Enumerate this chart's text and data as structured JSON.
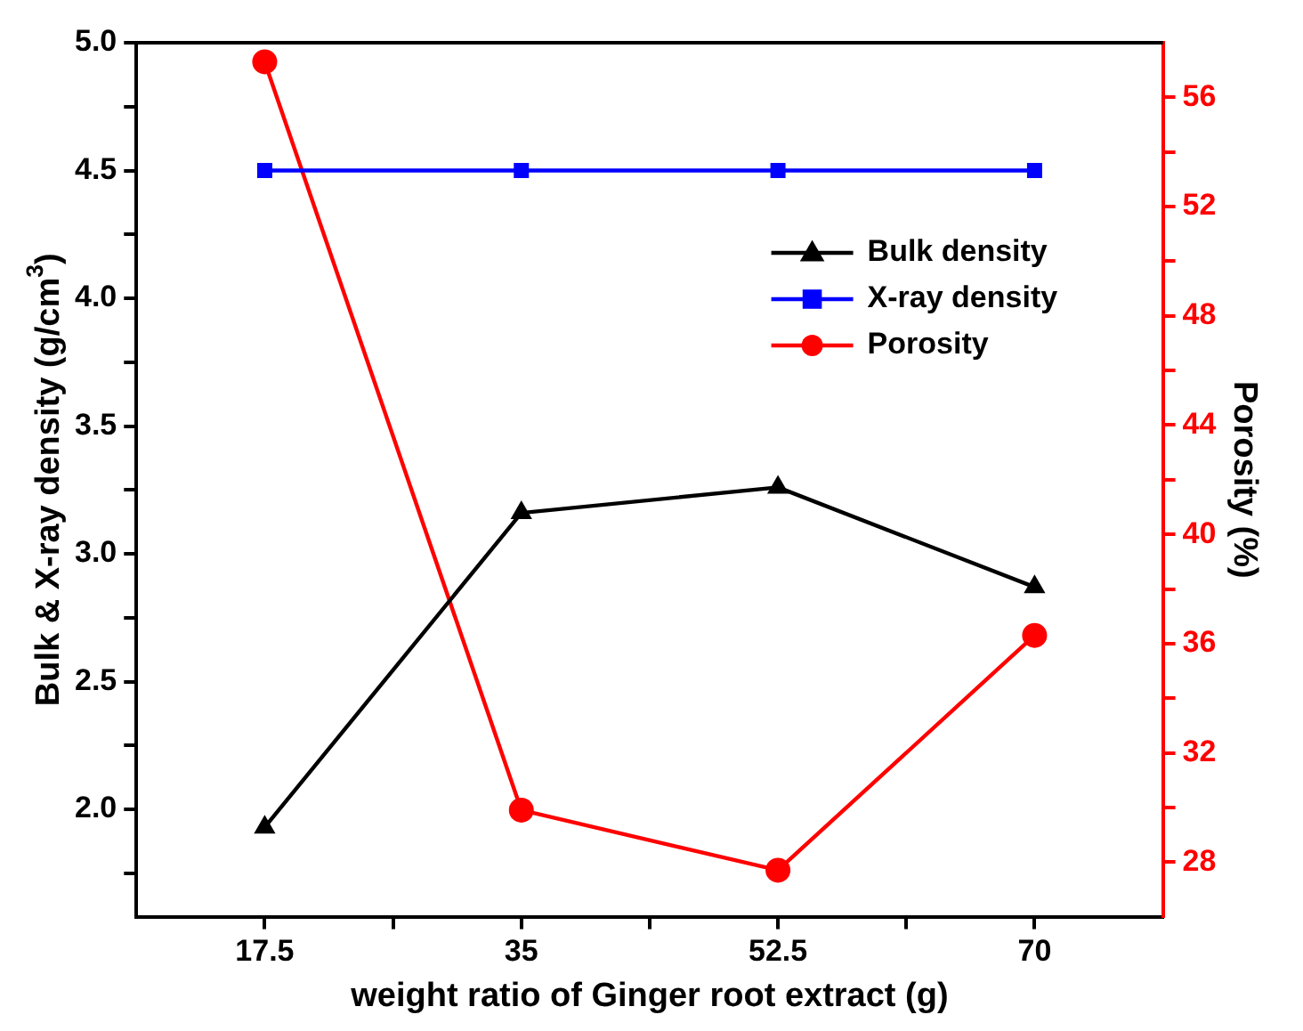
{
  "chart_data": {
    "type": "line",
    "xlabel": "weight ratio of Ginger root extract (g)",
    "ylabel": "Bulk & X-ray density (g/cm$^{3}$)",
    "y2label": "Porosity (%)",
    "x": [
      17.5,
      35,
      52.5,
      70
    ],
    "xlim": [
      8.75,
      78.75
    ],
    "xticks": [
      17.5,
      {
        "value": 26.25,
        "label": null
      },
      35,
      {
        "value": 43.75,
        "label": null
      },
      52.5,
      {
        "value": 61.25,
        "label": null
      },
      70
    ],
    "ylim": [
      1.58,
      5.0
    ],
    "yticks": [
      {
        "value": 1.75,
        "label": null
      },
      {
        "value": 2,
        "label": "2.0"
      },
      {
        "value": 2.25,
        "label": null
      },
      2.5,
      {
        "value": 2.75,
        "label": null
      },
      {
        "value": 3,
        "label": "3.0"
      },
      {
        "value": 3.25,
        "label": null
      },
      3.5,
      {
        "value": 3.75,
        "label": null
      },
      {
        "value": 4,
        "label": "4.0"
      },
      {
        "value": 4.25,
        "label": null
      },
      4.5,
      {
        "value": 4.75,
        "label": null
      },
      {
        "value": 5,
        "label": "5.0"
      }
    ],
    "y2lim": [
      26,
      58
    ],
    "y2ticks": [
      28,
      {
        "value": 30,
        "label": null
      },
      32,
      {
        "value": 34,
        "label": null
      },
      36,
      {
        "value": 38,
        "label": null
      },
      40,
      {
        "value": 42,
        "label": null
      },
      44,
      {
        "value": 46,
        "label": null
      },
      48,
      {
        "value": 50,
        "label": null
      },
      52,
      {
        "value": 54,
        "label": null
      },
      56
    ],
    "series": [
      {
        "name": "Bulk density",
        "color": "#000000",
        "marker": "triangle",
        "values": [
          1.93,
          3.16,
          3.26,
          2.87
        ]
      },
      {
        "name": "X-ray density",
        "color": "#0000ff",
        "marker": "square",
        "values": [
          4.5,
          4.5,
          4.5,
          4.5
        ]
      },
      {
        "name": "Porosity",
        "color": "#ff0000",
        "marker": "circle",
        "axis": "y2",
        "values": [
          57.3,
          29.9,
          27.7,
          36.3
        ]
      }
    ],
    "legend": "top right",
    "grid": false,
    "line_style": "solid"
  }
}
